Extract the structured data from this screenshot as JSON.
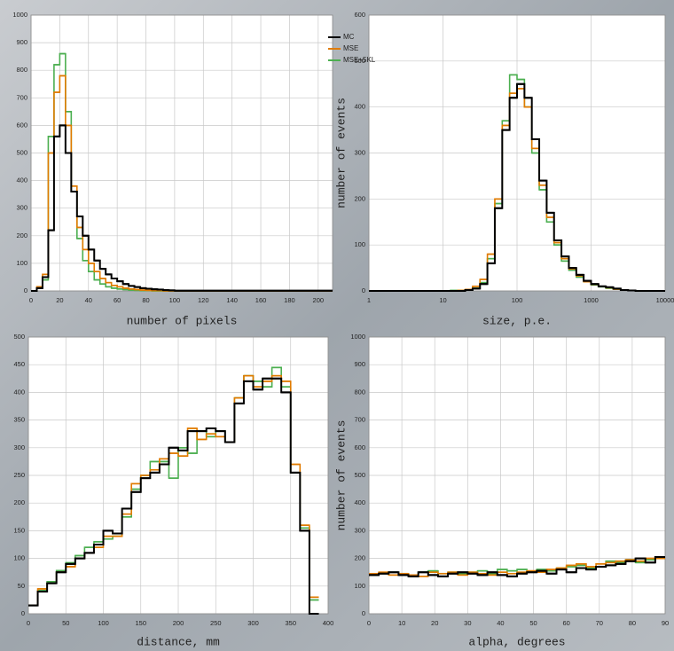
{
  "chart_data": [
    {
      "type": "histogram",
      "xlabel": "number of pixels",
      "bins": [
        0,
        4,
        8,
        12,
        16,
        20,
        24,
        28,
        32,
        36,
        40,
        44,
        48,
        52,
        56,
        60,
        64,
        68,
        72,
        76,
        80,
        84,
        88,
        92,
        96,
        100,
        210
      ],
      "series": [
        {
          "name": "MC",
          "color": "#000000",
          "values": [
            0,
            10,
            50,
            220,
            560,
            600,
            500,
            360,
            270,
            200,
            150,
            110,
            80,
            60,
            45,
            35,
            25,
            18,
            14,
            10,
            8,
            6,
            5,
            3,
            2,
            1
          ]
        },
        {
          "name": "MSE",
          "color": "#e07b00",
          "values": [
            0,
            15,
            60,
            500,
            720,
            780,
            600,
            380,
            230,
            150,
            100,
            70,
            45,
            30,
            20,
            15,
            10,
            7,
            5,
            3,
            2,
            1,
            1,
            0,
            0,
            0
          ]
        },
        {
          "name": "MSE+5KL",
          "color": "#4caf50",
          "values": [
            0,
            10,
            40,
            560,
            820,
            860,
            650,
            360,
            190,
            110,
            70,
            40,
            25,
            15,
            10,
            7,
            5,
            3,
            2,
            1,
            1,
            0,
            0,
            0,
            0,
            0
          ]
        }
      ],
      "xlim": [
        0,
        210
      ],
      "xticks": [
        0,
        20,
        40,
        60,
        80,
        100,
        120,
        140,
        160,
        180,
        200
      ],
      "ylim": [
        0,
        1000
      ],
      "yticks": [
        0,
        100,
        200,
        300,
        400,
        500,
        600,
        700,
        800,
        900,
        1000
      ],
      "grid": true
    },
    {
      "type": "histogram",
      "xlabel": "size, p.e.",
      "ylabel": "number of events",
      "xscale": "log",
      "legend": "upper left",
      "bins": [
        1,
        10,
        12.59,
        15.85,
        19.95,
        25.12,
        31.62,
        39.81,
        50.12,
        63.1,
        79.43,
        100,
        125.9,
        158.5,
        199.5,
        251.2,
        316.2,
        398.1,
        501.2,
        631,
        794.3,
        1000,
        1259,
        1585,
        1995,
        2512,
        3162,
        3981,
        5012,
        6310,
        7943,
        10000
      ],
      "series": [
        {
          "name": "MC",
          "color": "#000000",
          "values": [
            0,
            0,
            0,
            0,
            2,
            5,
            15,
            60,
            180,
            350,
            420,
            450,
            420,
            330,
            240,
            170,
            110,
            75,
            50,
            35,
            22,
            15,
            10,
            8,
            5,
            2,
            1,
            0,
            0,
            0,
            0
          ]
        },
        {
          "name": "MSE",
          "color": "#e07b00",
          "values": [
            0,
            0,
            0,
            1,
            3,
            10,
            25,
            80,
            200,
            360,
            430,
            440,
            400,
            310,
            230,
            160,
            105,
            70,
            48,
            33,
            20,
            14,
            10,
            7,
            4,
            2,
            1,
            0,
            0,
            0,
            0
          ]
        },
        {
          "name": "MSE+5KL",
          "color": "#4caf50",
          "values": [
            0,
            0,
            1,
            1,
            2,
            6,
            18,
            70,
            190,
            370,
            470,
            460,
            400,
            300,
            220,
            150,
            100,
            65,
            45,
            30,
            20,
            13,
            9,
            6,
            4,
            2,
            1,
            0,
            0,
            0,
            0
          ]
        }
      ],
      "xlim": [
        1,
        10000
      ],
      "xticks": [
        1,
        10,
        100,
        1000,
        10000
      ],
      "ylim": [
        0,
        600
      ],
      "yticks": [
        0,
        100,
        200,
        300,
        400,
        500,
        600
      ],
      "grid": true
    },
    {
      "type": "histogram",
      "xlabel": "distance, mm",
      "bins": [
        0,
        12.5,
        25,
        37.5,
        50,
        62.5,
        75,
        87.5,
        100,
        112.5,
        125,
        137.5,
        150,
        162.5,
        175,
        187.5,
        200,
        212.5,
        225,
        237.5,
        250,
        262.5,
        275,
        287.5,
        300,
        312.5,
        325,
        337.5,
        350,
        362.5,
        375,
        387.5
      ],
      "series": [
        {
          "name": "MC",
          "color": "#000000",
          "values": [
            15,
            40,
            55,
            75,
            90,
            100,
            110,
            125,
            150,
            145,
            190,
            220,
            245,
            255,
            270,
            300,
            295,
            330,
            330,
            335,
            330,
            310,
            380,
            420,
            405,
            425,
            425,
            400,
            255,
            150,
            0
          ]
        },
        {
          "name": "MSE",
          "color": "#e07b00",
          "values": [
            15,
            45,
            55,
            75,
            85,
            100,
            110,
            120,
            140,
            140,
            180,
            235,
            250,
            260,
            280,
            290,
            285,
            335,
            315,
            325,
            320,
            310,
            390,
            430,
            410,
            420,
            430,
            420,
            270,
            160,
            30
          ]
        },
        {
          "name": "MSE+5KL",
          "color": "#4caf50",
          "values": [
            15,
            42,
            58,
            78,
            92,
            105,
            120,
            130,
            135,
            140,
            175,
            225,
            250,
            275,
            275,
            245,
            300,
            290,
            330,
            320,
            330,
            310,
            390,
            430,
            420,
            410,
            445,
            410,
            255,
            155,
            25
          ]
        }
      ],
      "xlim": [
        0,
        400
      ],
      "xticks": [
        0,
        50,
        100,
        150,
        200,
        250,
        300,
        350,
        400
      ],
      "ylim": [
        0,
        500
      ],
      "yticks": [
        0,
        50,
        100,
        150,
        200,
        250,
        300,
        350,
        400,
        450,
        500
      ],
      "grid": true
    },
    {
      "type": "histogram",
      "xlabel": "alpha, degrees",
      "ylabel": "number of events",
      "bins": [
        0,
        3,
        6,
        9,
        12,
        15,
        18,
        21,
        24,
        27,
        30,
        33,
        36,
        39,
        42,
        45,
        48,
        51,
        54,
        57,
        60,
        63,
        66,
        69,
        72,
        75,
        78,
        81,
        84,
        87,
        90
      ],
      "series": [
        {
          "name": "MC",
          "color": "#000000",
          "values": [
            140,
            145,
            150,
            140,
            135,
            150,
            140,
            135,
            145,
            150,
            145,
            140,
            150,
            140,
            135,
            145,
            150,
            155,
            145,
            160,
            150,
            165,
            160,
            170,
            175,
            180,
            190,
            200,
            185,
            205
          ]
        },
        {
          "name": "MSE",
          "color": "#e07b00",
          "values": [
            145,
            150,
            140,
            145,
            140,
            135,
            150,
            145,
            150,
            140,
            150,
            145,
            140,
            150,
            145,
            150,
            155,
            150,
            160,
            165,
            175,
            180,
            170,
            180,
            185,
            190,
            195,
            190,
            200,
            200
          ]
        },
        {
          "name": "MSE+5KL",
          "color": "#4caf50",
          "values": [
            140,
            145,
            150,
            145,
            140,
            150,
            155,
            145,
            150,
            145,
            150,
            155,
            145,
            160,
            155,
            160,
            150,
            160,
            155,
            165,
            170,
            175,
            165,
            170,
            190,
            185,
            195,
            185,
            195,
            200
          ]
        }
      ],
      "xlim": [
        0,
        90
      ],
      "xticks": [
        0,
        10,
        20,
        30,
        40,
        50,
        60,
        70,
        80,
        90
      ],
      "ylim": [
        0,
        1000
      ],
      "yticks": [
        0,
        100,
        200,
        300,
        400,
        500,
        600,
        700,
        800,
        900,
        1000
      ],
      "grid": true
    }
  ]
}
